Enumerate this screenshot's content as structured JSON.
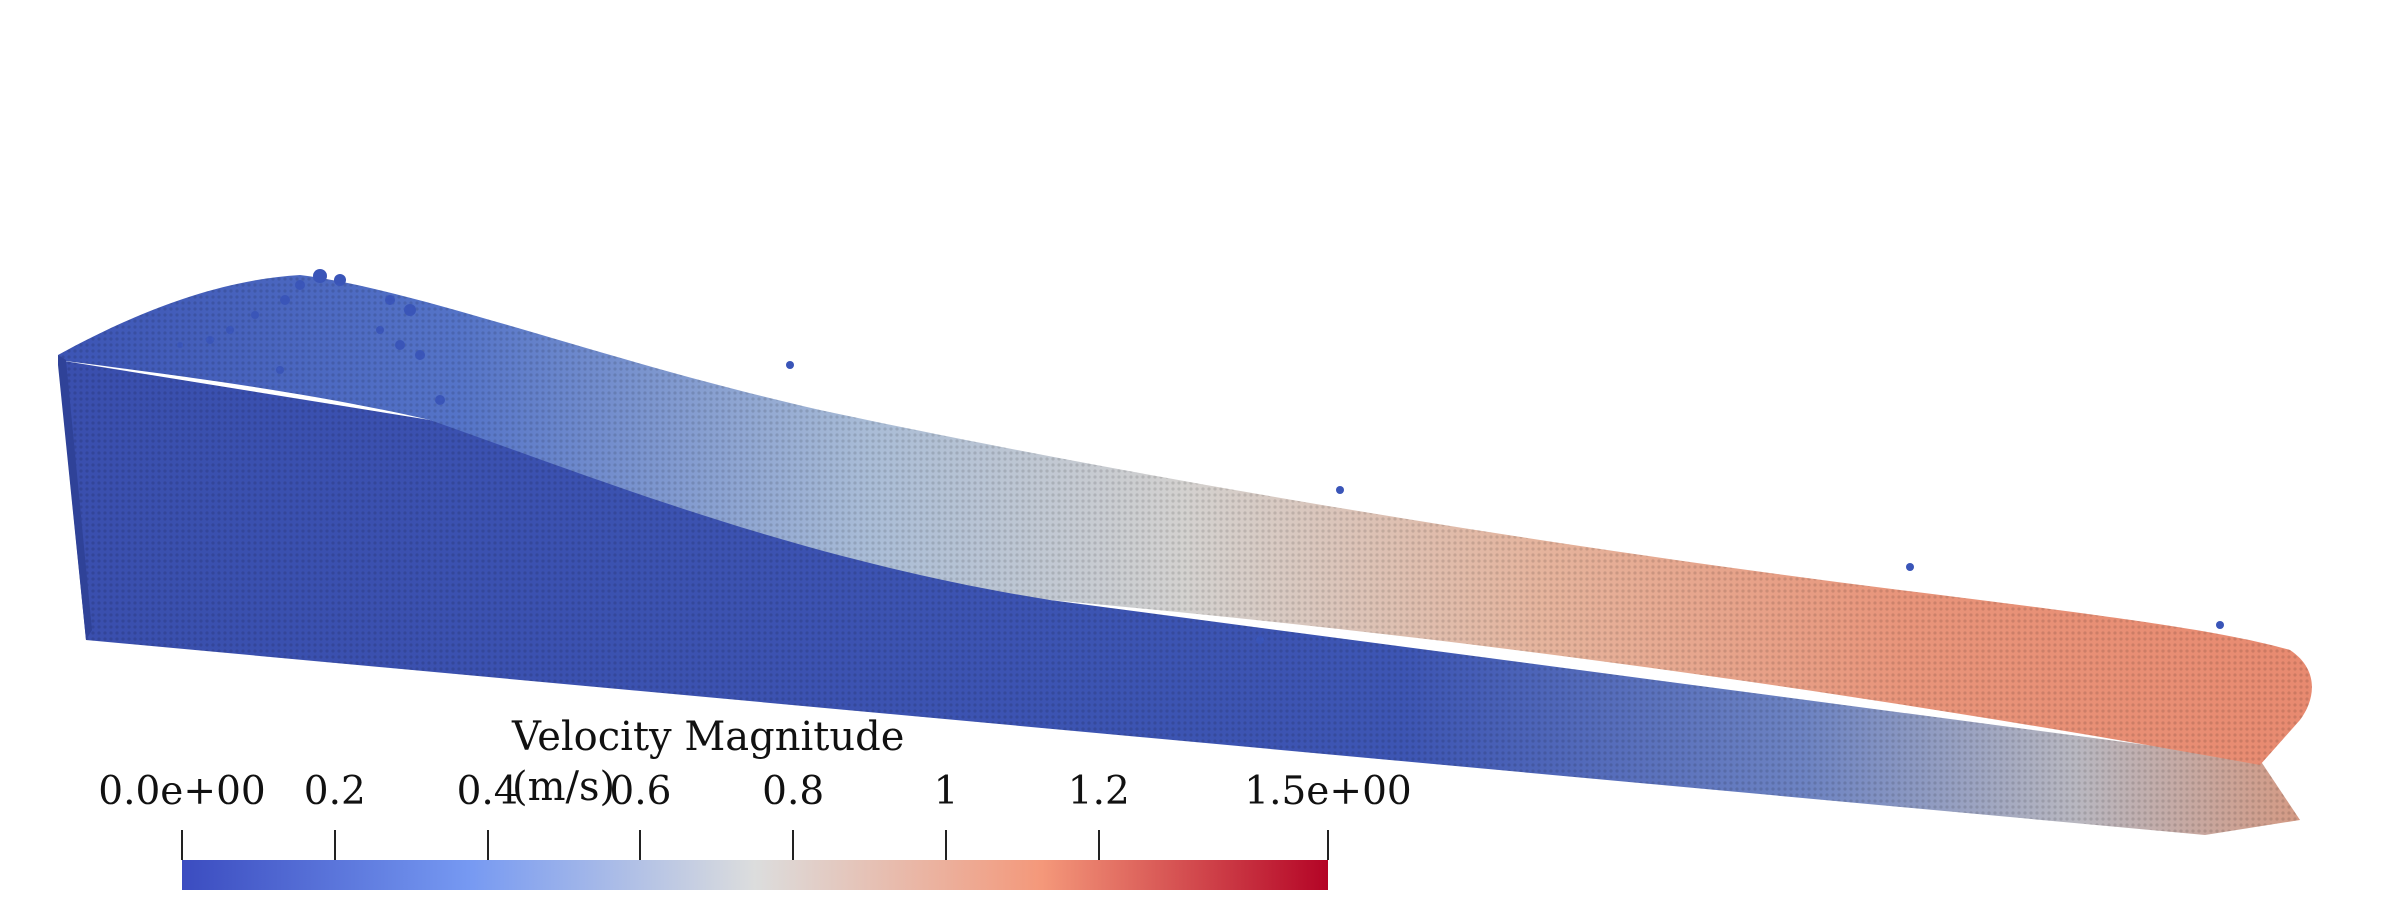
{
  "colorbar": {
    "title": "Velocity Magnitude (m/s)",
    "colormap": "Cool to Warm",
    "range": [
      0.0,
      1.5
    ],
    "stops": [
      "#3b4cc0",
      "#7699f2",
      "#dcdddd",
      "#f4987a",
      "#b40426"
    ],
    "ticks": [
      {
        "label": "0.0e+00",
        "value": 0.0
      },
      {
        "label": "0.2",
        "value": 0.2
      },
      {
        "label": "0.4",
        "value": 0.4
      },
      {
        "label": "0.6",
        "value": 0.6
      },
      {
        "label": "0.8",
        "value": 0.8
      },
      {
        "label": "1",
        "value": 1.0
      },
      {
        "label": "1.2",
        "value": 1.2
      },
      {
        "label": "1.5e+00",
        "value": 1.5
      }
    ]
  },
  "scene": {
    "background": "#ffffff",
    "body_colors": {
      "low": "#3d58b6",
      "mid": "#c9cdd2",
      "high": "#e68a6a"
    }
  }
}
